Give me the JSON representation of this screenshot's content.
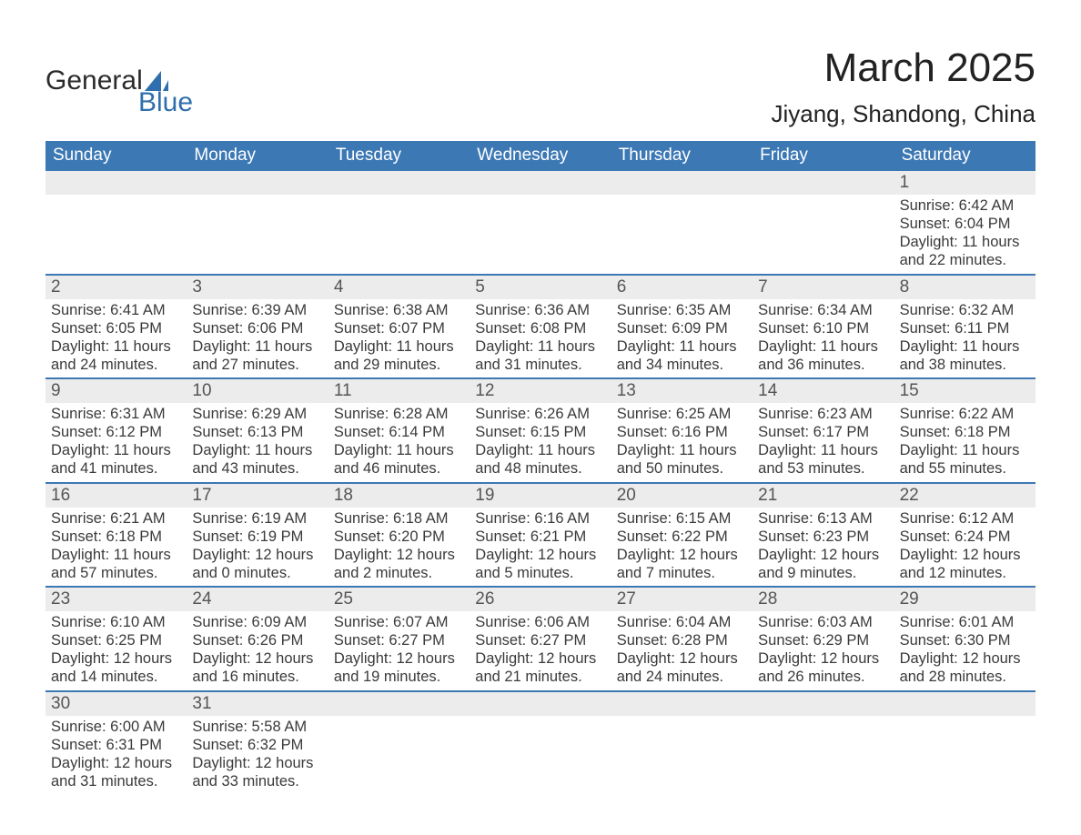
{
  "logo": {
    "text_top": "General",
    "text_bottom": "Blue",
    "accent_color": "#2f6fad"
  },
  "header": {
    "title": "March 2025",
    "location": "Jiyang, Shandong, China"
  },
  "calendar": {
    "header_bg": "#3c78b4",
    "header_fg": "#ffffff",
    "daynum_bg": "#ececec",
    "divider_color": "#3c78b4",
    "text_color": "#3a3a3a",
    "weekdays": [
      "Sunday",
      "Monday",
      "Tuesday",
      "Wednesday",
      "Thursday",
      "Friday",
      "Saturday"
    ],
    "weeks": [
      [
        {
          "n": "",
          "lines": []
        },
        {
          "n": "",
          "lines": []
        },
        {
          "n": "",
          "lines": []
        },
        {
          "n": "",
          "lines": []
        },
        {
          "n": "",
          "lines": []
        },
        {
          "n": "",
          "lines": []
        },
        {
          "n": "1",
          "lines": [
            "Sunrise: 6:42 AM",
            "Sunset: 6:04 PM",
            "Daylight: 11 hours",
            "and 22 minutes."
          ]
        }
      ],
      [
        {
          "n": "2",
          "lines": [
            "Sunrise: 6:41 AM",
            "Sunset: 6:05 PM",
            "Daylight: 11 hours",
            "and 24 minutes."
          ]
        },
        {
          "n": "3",
          "lines": [
            "Sunrise: 6:39 AM",
            "Sunset: 6:06 PM",
            "Daylight: 11 hours",
            "and 27 minutes."
          ]
        },
        {
          "n": "4",
          "lines": [
            "Sunrise: 6:38 AM",
            "Sunset: 6:07 PM",
            "Daylight: 11 hours",
            "and 29 minutes."
          ]
        },
        {
          "n": "5",
          "lines": [
            "Sunrise: 6:36 AM",
            "Sunset: 6:08 PM",
            "Daylight: 11 hours",
            "and 31 minutes."
          ]
        },
        {
          "n": "6",
          "lines": [
            "Sunrise: 6:35 AM",
            "Sunset: 6:09 PM",
            "Daylight: 11 hours",
            "and 34 minutes."
          ]
        },
        {
          "n": "7",
          "lines": [
            "Sunrise: 6:34 AM",
            "Sunset: 6:10 PM",
            "Daylight: 11 hours",
            "and 36 minutes."
          ]
        },
        {
          "n": "8",
          "lines": [
            "Sunrise: 6:32 AM",
            "Sunset: 6:11 PM",
            "Daylight: 11 hours",
            "and 38 minutes."
          ]
        }
      ],
      [
        {
          "n": "9",
          "lines": [
            "Sunrise: 6:31 AM",
            "Sunset: 6:12 PM",
            "Daylight: 11 hours",
            "and 41 minutes."
          ]
        },
        {
          "n": "10",
          "lines": [
            "Sunrise: 6:29 AM",
            "Sunset: 6:13 PM",
            "Daylight: 11 hours",
            "and 43 minutes."
          ]
        },
        {
          "n": "11",
          "lines": [
            "Sunrise: 6:28 AM",
            "Sunset: 6:14 PM",
            "Daylight: 11 hours",
            "and 46 minutes."
          ]
        },
        {
          "n": "12",
          "lines": [
            "Sunrise: 6:26 AM",
            "Sunset: 6:15 PM",
            "Daylight: 11 hours",
            "and 48 minutes."
          ]
        },
        {
          "n": "13",
          "lines": [
            "Sunrise: 6:25 AM",
            "Sunset: 6:16 PM",
            "Daylight: 11 hours",
            "and 50 minutes."
          ]
        },
        {
          "n": "14",
          "lines": [
            "Sunrise: 6:23 AM",
            "Sunset: 6:17 PM",
            "Daylight: 11 hours",
            "and 53 minutes."
          ]
        },
        {
          "n": "15",
          "lines": [
            "Sunrise: 6:22 AM",
            "Sunset: 6:18 PM",
            "Daylight: 11 hours",
            "and 55 minutes."
          ]
        }
      ],
      [
        {
          "n": "16",
          "lines": [
            "Sunrise: 6:21 AM",
            "Sunset: 6:18 PM",
            "Daylight: 11 hours",
            "and 57 minutes."
          ]
        },
        {
          "n": "17",
          "lines": [
            "Sunrise: 6:19 AM",
            "Sunset: 6:19 PM",
            "Daylight: 12 hours",
            "and 0 minutes."
          ]
        },
        {
          "n": "18",
          "lines": [
            "Sunrise: 6:18 AM",
            "Sunset: 6:20 PM",
            "Daylight: 12 hours",
            "and 2 minutes."
          ]
        },
        {
          "n": "19",
          "lines": [
            "Sunrise: 6:16 AM",
            "Sunset: 6:21 PM",
            "Daylight: 12 hours",
            "and 5 minutes."
          ]
        },
        {
          "n": "20",
          "lines": [
            "Sunrise: 6:15 AM",
            "Sunset: 6:22 PM",
            "Daylight: 12 hours",
            "and 7 minutes."
          ]
        },
        {
          "n": "21",
          "lines": [
            "Sunrise: 6:13 AM",
            "Sunset: 6:23 PM",
            "Daylight: 12 hours",
            "and 9 minutes."
          ]
        },
        {
          "n": "22",
          "lines": [
            "Sunrise: 6:12 AM",
            "Sunset: 6:24 PM",
            "Daylight: 12 hours",
            "and 12 minutes."
          ]
        }
      ],
      [
        {
          "n": "23",
          "lines": [
            "Sunrise: 6:10 AM",
            "Sunset: 6:25 PM",
            "Daylight: 12 hours",
            "and 14 minutes."
          ]
        },
        {
          "n": "24",
          "lines": [
            "Sunrise: 6:09 AM",
            "Sunset: 6:26 PM",
            "Daylight: 12 hours",
            "and 16 minutes."
          ]
        },
        {
          "n": "25",
          "lines": [
            "Sunrise: 6:07 AM",
            "Sunset: 6:27 PM",
            "Daylight: 12 hours",
            "and 19 minutes."
          ]
        },
        {
          "n": "26",
          "lines": [
            "Sunrise: 6:06 AM",
            "Sunset: 6:27 PM",
            "Daylight: 12 hours",
            "and 21 minutes."
          ]
        },
        {
          "n": "27",
          "lines": [
            "Sunrise: 6:04 AM",
            "Sunset: 6:28 PM",
            "Daylight: 12 hours",
            "and 24 minutes."
          ]
        },
        {
          "n": "28",
          "lines": [
            "Sunrise: 6:03 AM",
            "Sunset: 6:29 PM",
            "Daylight: 12 hours",
            "and 26 minutes."
          ]
        },
        {
          "n": "29",
          "lines": [
            "Sunrise: 6:01 AM",
            "Sunset: 6:30 PM",
            "Daylight: 12 hours",
            "and 28 minutes."
          ]
        }
      ],
      [
        {
          "n": "30",
          "lines": [
            "Sunrise: 6:00 AM",
            "Sunset: 6:31 PM",
            "Daylight: 12 hours",
            "and 31 minutes."
          ]
        },
        {
          "n": "31",
          "lines": [
            "Sunrise: 5:58 AM",
            "Sunset: 6:32 PM",
            "Daylight: 12 hours",
            "and 33 minutes."
          ]
        },
        {
          "n": "",
          "lines": []
        },
        {
          "n": "",
          "lines": []
        },
        {
          "n": "",
          "lines": []
        },
        {
          "n": "",
          "lines": []
        },
        {
          "n": "",
          "lines": []
        }
      ]
    ]
  }
}
